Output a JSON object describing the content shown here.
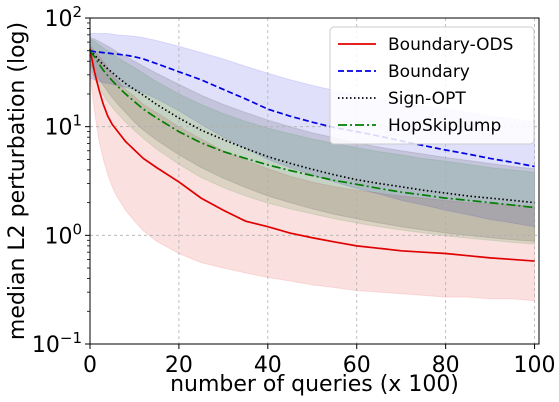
{
  "chart_data": {
    "type": "line",
    "title": "",
    "xlabel": "number of queries (x 100)",
    "ylabel": "median L2 perturbation (log)",
    "xlim": [
      0,
      101
    ],
    "ylim": [
      0.1,
      100
    ],
    "yscale": "log",
    "xticks": [
      0,
      20,
      40,
      60,
      80,
      100
    ],
    "xtick_labels": [
      "0",
      "20",
      "40",
      "60",
      "80",
      "100"
    ],
    "yticks": [
      0.1,
      1,
      10,
      100
    ],
    "ytick_labels": [
      {
        "base": "10",
        "exp": "−1"
      },
      {
        "base": "10",
        "exp": "0"
      },
      {
        "base": "10",
        "exp": "1"
      },
      {
        "base": "10",
        "exp": "2"
      }
    ],
    "grid": true,
    "legend_position": "top-right",
    "x": [
      0,
      1,
      2,
      3,
      4,
      5,
      6,
      8,
      10,
      12,
      15,
      20,
      25,
      30,
      35,
      40,
      45,
      50,
      55,
      60,
      65,
      70,
      75,
      80,
      85,
      90,
      95,
      100
    ],
    "series": [
      {
        "name": "Boundary-ODS",
        "color": "#e00000",
        "dash": "solid",
        "values": [
          52,
          32,
          22,
          16,
          12.5,
          10.5,
          9.3,
          7.3,
          6.1,
          5.1,
          4.2,
          3.1,
          2.2,
          1.7,
          1.35,
          1.2,
          1.05,
          0.95,
          0.87,
          0.8,
          0.76,
          0.72,
          0.7,
          0.68,
          0.65,
          0.62,
          0.6,
          0.58
        ],
        "upper": [
          56,
          50,
          45,
          40,
          35,
          30,
          27,
          22,
          19,
          16,
          13.5,
          10,
          7.7,
          6,
          4.9,
          4.1,
          3.5,
          3.1,
          2.8,
          2.6,
          2.45,
          2.3,
          2.2,
          2.1,
          2.0,
          1.95,
          1.9,
          1.85
        ],
        "lower": [
          30,
          14,
          7.5,
          5,
          3.6,
          2.8,
          2.3,
          1.7,
          1.35,
          1.1,
          0.88,
          0.68,
          0.56,
          0.5,
          0.45,
          0.41,
          0.38,
          0.35,
          0.33,
          0.31,
          0.3,
          0.29,
          0.28,
          0.27,
          0.27,
          0.26,
          0.26,
          0.25
        ]
      },
      {
        "name": "Boundary",
        "color": "#0000e0",
        "dash": "dashed",
        "values": [
          50,
          49,
          48.5,
          48,
          47.5,
          47,
          46.5,
          45.5,
          44,
          42,
          38,
          32,
          27,
          22,
          18,
          14.5,
          12.5,
          11,
          9.8,
          9,
          8.2,
          7.4,
          6.7,
          6.1,
          5.6,
          5.1,
          4.7,
          4.3
        ],
        "upper": [
          72,
          72,
          72,
          72,
          72,
          71,
          70,
          69,
          68,
          66,
          62,
          55,
          48,
          42,
          36,
          31,
          27,
          24,
          21.5,
          19.5,
          18,
          16.5,
          15.5,
          14.5,
          13.5,
          12.5,
          11.8,
          11
        ],
        "lower": [
          28,
          27,
          26,
          25.5,
          25,
          24.5,
          24,
          23,
          22,
          20.5,
          18,
          14,
          10.5,
          8,
          6.3,
          5,
          4.2,
          3.6,
          3.1,
          2.7,
          2.4,
          2.1,
          1.9,
          1.7,
          1.55,
          1.4,
          1.3,
          1.2
        ]
      },
      {
        "name": "Sign-OPT",
        "color": "#000000",
        "dash": "dotted",
        "values": [
          50,
          46,
          41,
          37,
          34,
          31.5,
          29,
          25,
          22,
          19.5,
          16,
          12,
          9.3,
          7.6,
          6.3,
          5.3,
          4.6,
          4.05,
          3.6,
          3.25,
          3.0,
          2.8,
          2.6,
          2.45,
          2.3,
          2.2,
          2.1,
          2.0
        ],
        "upper": [
          66,
          64,
          61,
          58,
          55,
          52,
          49,
          44,
          40,
          36,
          31,
          24.5,
          19.5,
          16,
          13.5,
          11.5,
          10,
          8.8,
          7.9,
          7.1,
          6.5,
          6,
          5.6,
          5.2,
          4.9,
          4.6,
          4.3,
          4.1
        ],
        "lower": [
          38,
          32,
          27.5,
          24,
          21,
          18.5,
          16.5,
          13.5,
          11,
          9.3,
          7.5,
          5.5,
          4.2,
          3.35,
          2.75,
          2.3,
          2,
          1.75,
          1.56,
          1.42,
          1.3,
          1.2,
          1.12,
          1.05,
          1.0,
          0.95,
          0.91,
          0.88
        ]
      },
      {
        "name": "HopSkipJump",
        "color": "#007f00",
        "dash": "dashdot",
        "values": [
          50,
          44,
          38,
          33,
          29.5,
          26.5,
          24,
          20,
          17,
          14.5,
          12,
          9,
          7.1,
          5.9,
          5.1,
          4.45,
          3.95,
          3.55,
          3.2,
          2.95,
          2.7,
          2.5,
          2.35,
          2.2,
          2.1,
          2.0,
          1.9,
          1.8
        ],
        "upper": [
          64,
          61,
          57,
          53,
          50,
          47,
          44,
          39,
          35,
          31,
          26,
          20,
          16,
          13.2,
          11.2,
          9.7,
          8.6,
          7.7,
          7,
          6.4,
          5.9,
          5.5,
          5.1,
          4.8,
          4.5,
          4.2,
          4.0,
          3.8
        ],
        "lower": [
          35,
          28,
          23,
          19.5,
          17,
          15,
          13.5,
          11,
          9.2,
          7.8,
          6.2,
          4.5,
          3.4,
          2.75,
          2.3,
          1.98,
          1.75,
          1.57,
          1.42,
          1.3,
          1.2,
          1.12,
          1.05,
          0.99,
          0.94,
          0.9,
          0.86,
          0.83
        ]
      }
    ]
  }
}
